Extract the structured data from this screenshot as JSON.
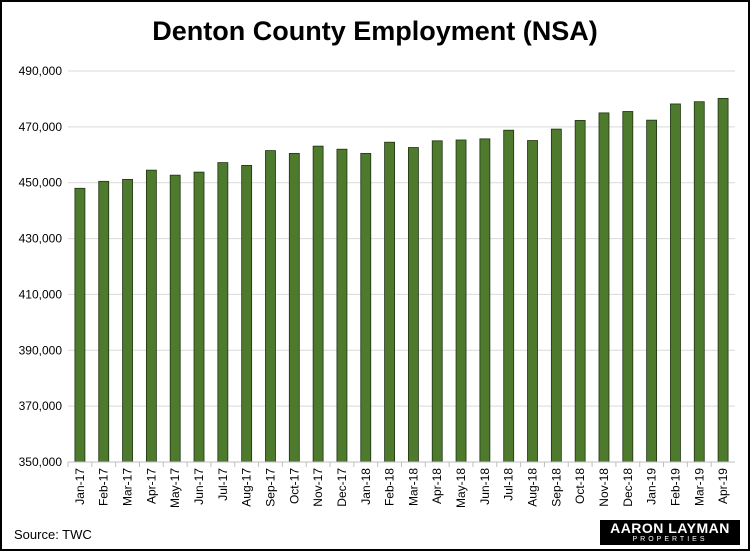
{
  "chart_data": {
    "type": "bar",
    "title": "Denton County Employment (NSA)",
    "xlabel": "",
    "ylabel": "",
    "categories": [
      "Jan-17",
      "Feb-17",
      "Mar-17",
      "Apr-17",
      "May-17",
      "Jun-17",
      "Jul-17",
      "Aug-17",
      "Sep-17",
      "Oct-17",
      "Nov-17",
      "Dec-17",
      "Jan-18",
      "Feb-18",
      "Mar-18",
      "Apr-18",
      "May-18",
      "Jun-18",
      "Jul-18",
      "Aug-18",
      "Sep-18",
      "Oct-18",
      "Nov-18",
      "Dec-18",
      "Jan-19",
      "Feb-19",
      "Mar-19",
      "Apr-19"
    ],
    "values": [
      448000,
      450500,
      451200,
      454500,
      452700,
      453800,
      457200,
      456200,
      461500,
      460500,
      463100,
      462000,
      460500,
      464500,
      462600,
      465000,
      465300,
      465700,
      468800,
      465100,
      469200,
      472300,
      475000,
      475500,
      472400,
      478200,
      479000,
      480200
    ],
    "ylim": [
      350000,
      490000
    ],
    "yticks": [
      350000,
      370000,
      390000,
      410000,
      430000,
      450000,
      470000,
      490000
    ],
    "ytick_labels": [
      "350,000",
      "370,000",
      "390,000",
      "410,000",
      "430,000",
      "450,000",
      "470,000",
      "490,000"
    ],
    "grid": true,
    "bar_color": "#4e7a2e",
    "bar_edge_color": "#1e3310"
  },
  "footer": {
    "source": "Source: TWC",
    "logo_name": "AARON LAYMAN",
    "logo_sub": "PROPERTIES"
  }
}
